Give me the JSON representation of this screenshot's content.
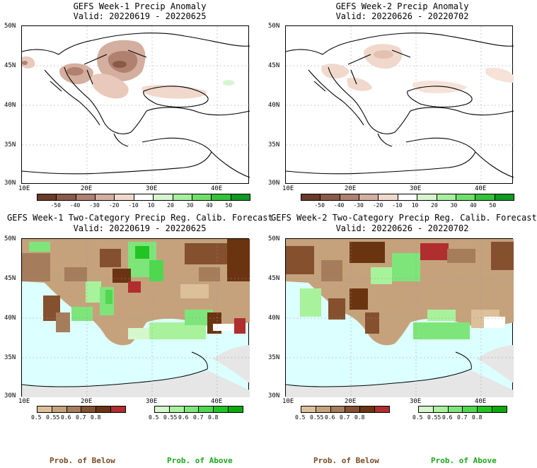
{
  "panels": [
    {
      "title": "GEFS Week-1 Precip Anomaly",
      "valid": "Valid: 20220619 - 20220625"
    },
    {
      "title": "GEFS Week-2 Precip Anomaly",
      "valid": "Valid: 20220626 - 20220702"
    },
    {
      "title": "GEFS Week-1 Two-Category Precip Reg. Calib. Forecast",
      "valid": "Valid: 20220619 - 20220625"
    },
    {
      "title": "GEFS Week-2 Two-Category Precip Reg. Calib. Forecast",
      "valid": "Valid: 20220626 - 20220702"
    }
  ],
  "lat_labels": [
    "50N",
    "45N",
    "40N",
    "35N",
    "30N"
  ],
  "lon_labels": [
    "10E",
    "20E",
    "30E",
    "40E"
  ],
  "anomaly_colorbar": {
    "labels": [
      "-50",
      "-40",
      "-30",
      "-20",
      "-10",
      "10",
      "20",
      "30",
      "40",
      "50"
    ],
    "colors": [
      "#6b3a2a",
      "#8a5a48",
      "#b08070",
      "#d4ae9e",
      "#f0d8cc",
      "#ffffff",
      "#d6f5cf",
      "#a7eea0",
      "#6fdf6a",
      "#33c23a",
      "#0f9a22"
    ]
  },
  "below_colorbar": {
    "labels": [
      "0.5",
      "0.55",
      "0.6",
      "0.7",
      "0.8"
    ],
    "colors": [
      "#dcc09a",
      "#c5a27c",
      "#a57d5c",
      "#85502e",
      "#6b3410",
      "#b02e2e"
    ]
  },
  "above_colorbar": {
    "labels": [
      "0.5",
      "0.55",
      "0.6",
      "0.7",
      "0.8"
    ],
    "colors": [
      "#d4f7cc",
      "#a9f29c",
      "#7ee57a",
      "#4fd84f",
      "#22c424",
      "#0aa90a"
    ]
  },
  "legend": {
    "below": "Prob. of Below",
    "above": "Prob. of Above",
    "below_color": "#7a4a20",
    "above_color": "#1aa81a"
  },
  "colors": {
    "sea": "#dcffff",
    "land": "#ffffff",
    "no_data": "#e6e6e6"
  }
}
